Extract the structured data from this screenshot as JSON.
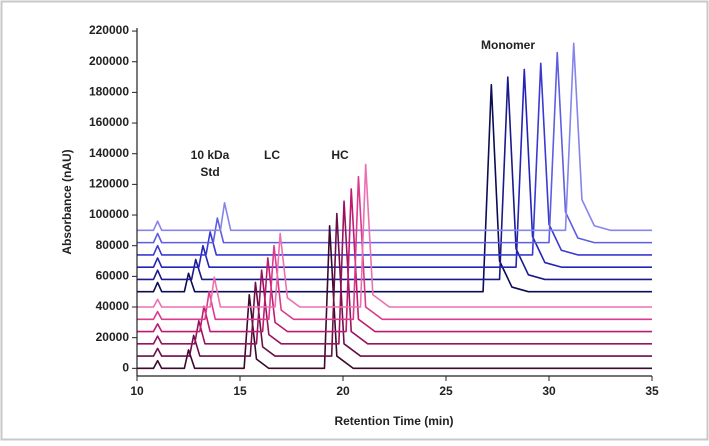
{
  "chart_data": {
    "type": "line",
    "xlabel": "Retention Time (min)",
    "ylabel": "Absorbance (nAU)",
    "annotations": [
      "10 kDa",
      "Std",
      "LC",
      "HC",
      "Monomer"
    ],
    "xlim": [
      10,
      35
    ],
    "xticks": [
      10,
      15,
      20,
      25,
      30,
      35
    ],
    "ylim": [
      -5000,
      222000
    ],
    "yticks": [
      0,
      20000,
      40000,
      60000,
      80000,
      100000,
      120000,
      140000,
      160000,
      180000,
      200000,
      220000
    ],
    "series": [
      {
        "color": "#0c0c55",
        "x": [
          10,
          10.8,
          11,
          11.2,
          12.3,
          12.5,
          12.8,
          14.5,
          26.8,
          27.2,
          27.6,
          28.2,
          29,
          35
        ],
        "values": [
          50000,
          50000,
          56000,
          50000,
          50000,
          62000,
          50000,
          50000,
          50000,
          185000,
          70000,
          53000,
          50000,
          50000
        ]
      },
      {
        "color": "#1a1a8a",
        "x": [
          10,
          10.8,
          11,
          11.2,
          12.65,
          12.85,
          13.15,
          14.85,
          27.6,
          28,
          28.4,
          29,
          29.8,
          35
        ],
        "values": [
          58000,
          58000,
          64000,
          58000,
          58000,
          71000,
          58000,
          58000,
          58000,
          190000,
          78000,
          61000,
          58000,
          58000
        ]
      },
      {
        "color": "#2424b8",
        "x": [
          10,
          10.8,
          11,
          11.2,
          13,
          13.2,
          13.5,
          15.2,
          28.4,
          28.8,
          29.2,
          29.8,
          30.6,
          35
        ],
        "values": [
          66000,
          66000,
          72000,
          66000,
          66000,
          80000,
          66000,
          66000,
          66000,
          195000,
          86000,
          69000,
          66000,
          66000
        ]
      },
      {
        "color": "#3a3ad0",
        "x": [
          10,
          10.8,
          11,
          11.2,
          13.35,
          13.55,
          13.85,
          15.55,
          29.2,
          29.6,
          30,
          30.6,
          31.4,
          35
        ],
        "values": [
          74000,
          74000,
          80000,
          74000,
          74000,
          89000,
          74000,
          74000,
          74000,
          199000,
          94000,
          77000,
          74000,
          74000
        ]
      },
      {
        "color": "#5e5ee0",
        "x": [
          10,
          10.8,
          11,
          11.2,
          13.7,
          13.9,
          14.2,
          15.9,
          30,
          30.4,
          30.8,
          31.4,
          32.2,
          35
        ],
        "values": [
          82000,
          82000,
          88000,
          82000,
          82000,
          98000,
          82000,
          82000,
          82000,
          206000,
          102000,
          85000,
          82000,
          82000
        ]
      },
      {
        "color": "#8585ea",
        "x": [
          10,
          10.8,
          11,
          11.2,
          14.05,
          14.25,
          14.55,
          16.25,
          30.8,
          31.2,
          31.6,
          32.2,
          33,
          35
        ],
        "values": [
          90000,
          90000,
          96000,
          90000,
          90000,
          108000,
          90000,
          90000,
          90000,
          212000,
          110000,
          93000,
          90000,
          90000
        ]
      },
      {
        "color": "#3a0a2e",
        "x": [
          10,
          10.8,
          11,
          11.2,
          12.3,
          12.5,
          12.8,
          15.2,
          15.45,
          15.8,
          16.4,
          19.1,
          19.35,
          19.7,
          20.5,
          35
        ],
        "values": [
          0,
          0,
          5000,
          0,
          0,
          12000,
          0,
          0,
          48000,
          6000,
          0,
          0,
          93000,
          8000,
          0,
          0
        ]
      },
      {
        "color": "#6a0f48",
        "x": [
          10,
          10.8,
          11,
          11.2,
          12.55,
          12.75,
          13.05,
          15.5,
          15.75,
          16.1,
          16.7,
          19.45,
          19.7,
          20.05,
          20.85,
          35
        ],
        "values": [
          8000,
          8000,
          13000,
          8000,
          8000,
          21500,
          8000,
          8000,
          56000,
          14000,
          8000,
          8000,
          101000,
          16000,
          8000,
          8000
        ]
      },
      {
        "color": "#96145e",
        "x": [
          10,
          10.8,
          11,
          11.2,
          12.8,
          13,
          13.3,
          15.8,
          16.05,
          16.4,
          17,
          19.8,
          20.05,
          20.4,
          21.2,
          35
        ],
        "values": [
          16000,
          16000,
          21000,
          16000,
          16000,
          31000,
          16000,
          16000,
          64000,
          22000,
          16000,
          16000,
          109000,
          24000,
          16000,
          16000
        ]
      },
      {
        "color": "#c01a70",
        "x": [
          10,
          10.8,
          11,
          11.2,
          13.05,
          13.25,
          13.55,
          16.1,
          16.35,
          16.7,
          17.3,
          20.15,
          20.4,
          20.75,
          21.55,
          35
        ],
        "values": [
          24000,
          24000,
          29000,
          24000,
          24000,
          40500,
          24000,
          24000,
          72000,
          30000,
          24000,
          24000,
          117000,
          32000,
          24000,
          24000
        ]
      },
      {
        "color": "#dc3a8c",
        "x": [
          10,
          10.8,
          11,
          11.2,
          13.3,
          13.5,
          13.8,
          16.4,
          16.65,
          17,
          17.6,
          20.5,
          20.75,
          21.1,
          21.9,
          35
        ],
        "values": [
          32000,
          32000,
          37000,
          32000,
          32000,
          50000,
          32000,
          32000,
          80000,
          38000,
          32000,
          32000,
          125000,
          40000,
          32000,
          32000
        ]
      },
      {
        "color": "#ec70b0",
        "x": [
          10,
          10.8,
          11,
          11.2,
          13.55,
          13.75,
          14.05,
          16.7,
          16.95,
          17.3,
          17.9,
          20.85,
          21.1,
          21.45,
          22.25,
          35
        ],
        "values": [
          40000,
          40000,
          45000,
          40000,
          40000,
          59500,
          40000,
          40000,
          88000,
          46000,
          40000,
          40000,
          133000,
          48000,
          40000,
          40000
        ]
      }
    ]
  }
}
